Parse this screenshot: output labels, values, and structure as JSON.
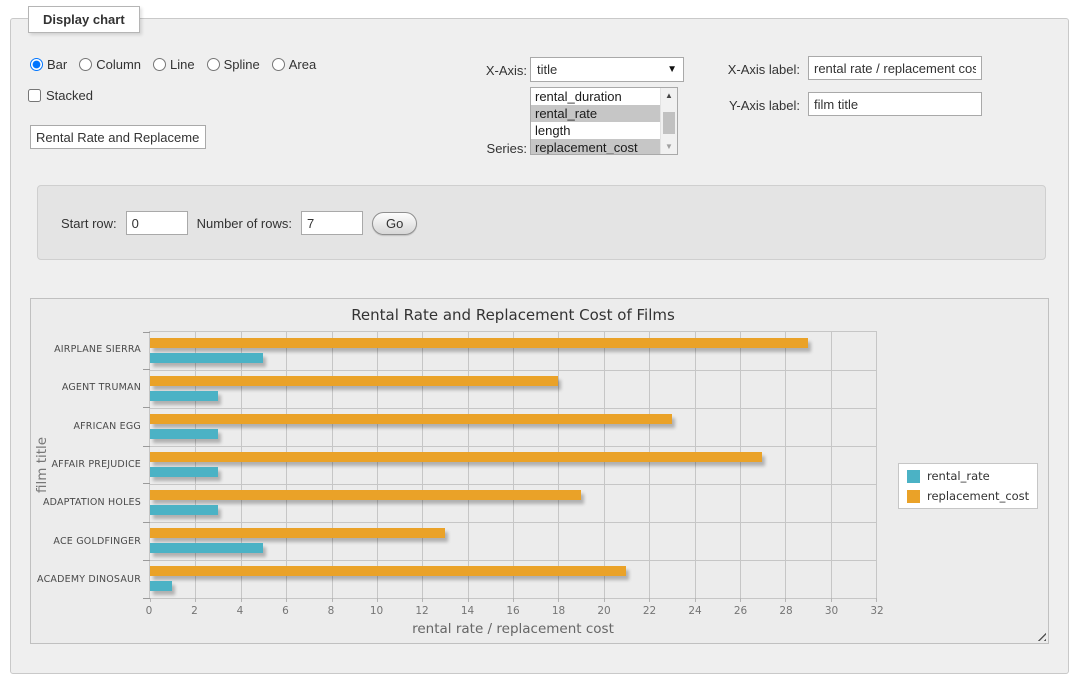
{
  "fieldset": {
    "legend": "Display chart"
  },
  "chart_type": {
    "options": [
      {
        "label": "Bar",
        "selected": true
      },
      {
        "label": "Column",
        "selected": false
      },
      {
        "label": "Line",
        "selected": false
      },
      {
        "label": "Spline",
        "selected": false
      },
      {
        "label": "Area",
        "selected": false
      }
    ]
  },
  "stacked": {
    "label": "Stacked",
    "checked": false
  },
  "chart_title_input": {
    "value": "Rental Rate and Replacemer"
  },
  "x_axis": {
    "label": "X-Axis:",
    "value": "title"
  },
  "series_select": {
    "label": "Series:",
    "options": [
      {
        "label": "rental_duration",
        "selected": false
      },
      {
        "label": "rental_rate",
        "selected": true
      },
      {
        "label": "length",
        "selected": false
      },
      {
        "label": "replacement_cost",
        "selected": true
      }
    ]
  },
  "x_axis_label": {
    "label": "X-Axis label:",
    "value": "rental rate / replacement cost"
  },
  "y_axis_label": {
    "label": "Y-Axis label:",
    "value": "film title"
  },
  "row_controls": {
    "start_row_label": "Start row:",
    "start_row_value": "0",
    "num_rows_label": "Number of rows:",
    "num_rows_value": "7",
    "go_label": "Go"
  },
  "chart_data": {
    "type": "bar",
    "orientation": "horizontal",
    "title": "Rental Rate and Replacement Cost of Films",
    "xlabel": "rental rate / replacement cost",
    "ylabel": "film title",
    "categories": [
      "AIRPLANE SIERRA",
      "AGENT TRUMAN",
      "AFRICAN EGG",
      "AFFAIR PREJUDICE",
      "ADAPTATION HOLES",
      "ACE GOLDFINGER",
      "ACADEMY DINOSAUR"
    ],
    "series": [
      {
        "name": "rental_rate",
        "color": "#4bb2c5",
        "values": [
          4.99,
          2.99,
          2.99,
          2.99,
          2.99,
          4.99,
          0.99
        ]
      },
      {
        "name": "replacement_cost",
        "color": "#EAA228",
        "values": [
          28.99,
          17.99,
          22.99,
          26.99,
          18.99,
          12.99,
          20.99
        ]
      }
    ],
    "xlim": [
      0,
      32
    ],
    "xtick_step": 2,
    "grid": true,
    "legend_position": "right",
    "colors": {
      "grid": "#c6c6c6",
      "background": "#ececec"
    }
  }
}
